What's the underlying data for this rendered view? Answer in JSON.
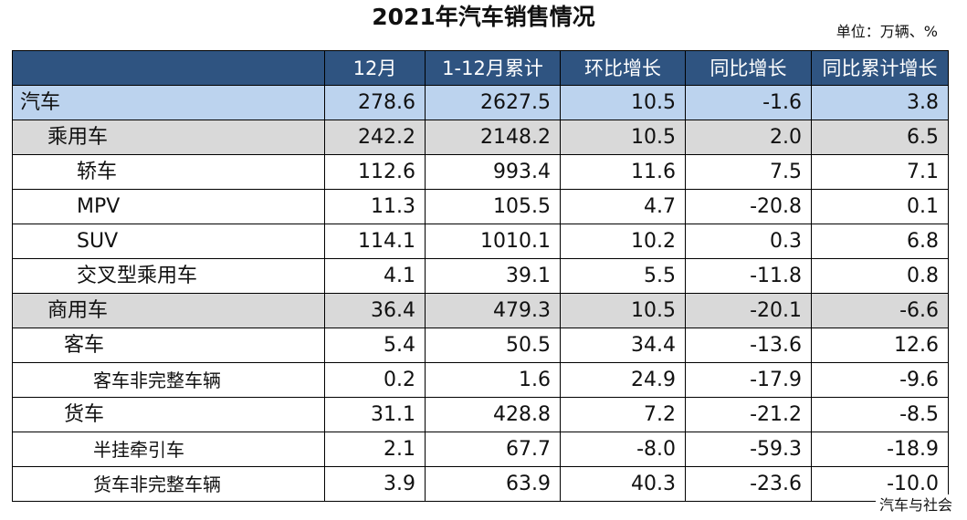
{
  "title": "2021年汽车销售情况",
  "unit_label": "单位：万辆、%",
  "source_label": "汽车与社会",
  "chart_data": {
    "type": "table",
    "title": "2021年汽车销售情况",
    "unit": "单位：万辆、%",
    "columns": [
      "",
      "12月",
      "1-12月累计",
      "环比增长",
      "同比增长",
      "同比累计增长"
    ],
    "rows": [
      {
        "label": "汽车",
        "level": 0,
        "values": [
          "278.6",
          "2627.5",
          "10.5",
          "-1.6",
          "3.8"
        ]
      },
      {
        "label": "乘用车",
        "level": 1,
        "values": [
          "242.2",
          "2148.2",
          "10.5",
          "2.0",
          "6.5"
        ]
      },
      {
        "label": "轿车",
        "level": 2,
        "values": [
          "112.6",
          "993.4",
          "11.6",
          "7.5",
          "7.1"
        ]
      },
      {
        "label": "MPV",
        "level": 2,
        "values": [
          "11.3",
          "105.5",
          "4.7",
          "-20.8",
          "0.1"
        ]
      },
      {
        "label": "SUV",
        "level": 2,
        "values": [
          "114.1",
          "1010.1",
          "10.2",
          "0.3",
          "6.8"
        ]
      },
      {
        "label": "交叉型乘用车",
        "level": 2,
        "values": [
          "4.1",
          "39.1",
          "5.5",
          "-11.8",
          "0.8"
        ]
      },
      {
        "label": "商用车",
        "level": 1,
        "values": [
          "36.4",
          "479.3",
          "10.5",
          "-20.1",
          "-6.6"
        ]
      },
      {
        "label": "客车",
        "level": 3,
        "values": [
          "5.4",
          "50.5",
          "34.4",
          "-13.6",
          "12.6"
        ]
      },
      {
        "label": "客车非完整车辆",
        "level": 4,
        "values": [
          "0.2",
          "1.6",
          "24.9",
          "-17.9",
          "-9.6"
        ]
      },
      {
        "label": "货车",
        "level": 3,
        "values": [
          "31.1",
          "428.8",
          "7.2",
          "-21.2",
          "-8.5"
        ]
      },
      {
        "label": "半挂牵引车",
        "level": 4,
        "values": [
          "2.1",
          "67.7",
          "-8.0",
          "-59.3",
          "-18.9"
        ]
      },
      {
        "label": "货车非完整车辆",
        "level": 4,
        "values": [
          "3.9",
          "63.9",
          "40.3",
          "-23.6",
          "-10.0"
        ]
      }
    ]
  }
}
